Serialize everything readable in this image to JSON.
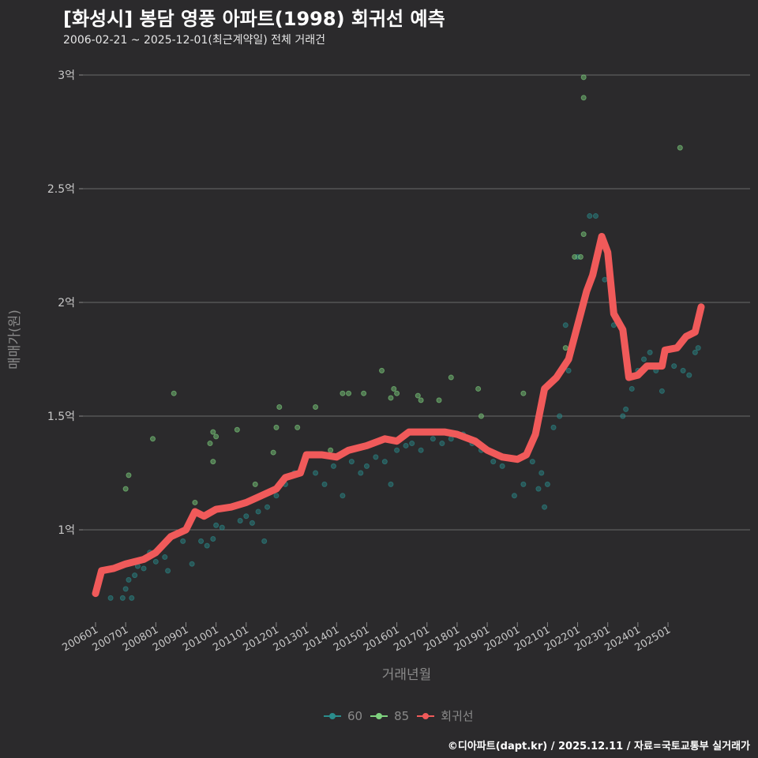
{
  "title": "[화성시] 봉담 영풍 아파트(1998) 회귀선 예측",
  "subtitle": "2006-02-21 ~ 2025-12-01(최근계약일) 전체 거래건",
  "caption": "©디아파트(dapt.kr) / 2025.12.11 / 자료=국토교통부 실거래가",
  "colors": {
    "s60": "#2a8c8c",
    "s85": "#7fd27f",
    "reg": "#f05a5a"
  },
  "chart_data": {
    "type": "scatter",
    "xlabel": "거래년월",
    "ylabel": "매매가(원)",
    "ylim": [
      0.6,
      3.0
    ],
    "xlim": [
      2005.6,
      2026.8
    ],
    "yticks": [
      {
        "v": 1,
        "label": "1억"
      },
      {
        "v": 1.5,
        "label": "1.5억"
      },
      {
        "v": 2,
        "label": "2억"
      },
      {
        "v": 2.5,
        "label": "2.5억"
      },
      {
        "v": 3,
        "label": "3억"
      }
    ],
    "xticks": [
      "200601",
      "200701",
      "200801",
      "200901",
      "201001",
      "201101",
      "201201",
      "201301",
      "201401",
      "201501",
      "201601",
      "201701",
      "201801",
      "201901",
      "202001",
      "202101",
      "202201",
      "202301",
      "202401",
      "202501"
    ],
    "legend": [
      "60",
      "85",
      "회귀선"
    ],
    "series": [
      {
        "name": "60",
        "points": [
          [
            2006.5,
            0.7
          ],
          [
            2006.9,
            0.7
          ],
          [
            2007.0,
            0.74
          ],
          [
            2007.1,
            0.78
          ],
          [
            2007.2,
            0.7
          ],
          [
            2007.3,
            0.8
          ],
          [
            2007.4,
            0.84
          ],
          [
            2007.6,
            0.83
          ],
          [
            2007.8,
            0.9
          ],
          [
            2008.0,
            0.86
          ],
          [
            2008.3,
            0.88
          ],
          [
            2008.4,
            0.82
          ],
          [
            2008.9,
            0.95
          ],
          [
            2009.2,
            0.85
          ],
          [
            2009.5,
            0.95
          ],
          [
            2009.7,
            0.93
          ],
          [
            2009.9,
            0.96
          ],
          [
            2010.0,
            1.02
          ],
          [
            2010.2,
            1.01
          ],
          [
            2010.8,
            1.04
          ],
          [
            2011.0,
            1.06
          ],
          [
            2011.2,
            1.03
          ],
          [
            2011.4,
            1.08
          ],
          [
            2011.6,
            0.95
          ],
          [
            2011.7,
            1.1
          ],
          [
            2012.0,
            1.15
          ],
          [
            2012.3,
            1.2
          ],
          [
            2012.6,
            1.25
          ],
          [
            2012.9,
            1.3
          ],
          [
            2013.3,
            1.25
          ],
          [
            2013.6,
            1.2
          ],
          [
            2013.9,
            1.28
          ],
          [
            2014.2,
            1.15
          ],
          [
            2014.5,
            1.3
          ],
          [
            2014.8,
            1.25
          ],
          [
            2015.0,
            1.28
          ],
          [
            2015.3,
            1.32
          ],
          [
            2015.6,
            1.3
          ],
          [
            2015.8,
            1.2
          ],
          [
            2016.0,
            1.35
          ],
          [
            2016.3,
            1.37
          ],
          [
            2016.5,
            1.38
          ],
          [
            2016.8,
            1.35
          ],
          [
            2017.2,
            1.4
          ],
          [
            2017.5,
            1.38
          ],
          [
            2017.8,
            1.4
          ],
          [
            2018.2,
            1.42
          ],
          [
            2018.5,
            1.38
          ],
          [
            2018.8,
            1.35
          ],
          [
            2019.2,
            1.3
          ],
          [
            2019.5,
            1.28
          ],
          [
            2019.9,
            1.15
          ],
          [
            2020.2,
            1.2
          ],
          [
            2020.5,
            1.3
          ],
          [
            2020.7,
            1.18
          ],
          [
            2020.8,
            1.25
          ],
          [
            2020.9,
            1.1
          ],
          [
            2021.0,
            1.2
          ],
          [
            2021.2,
            1.45
          ],
          [
            2021.4,
            1.5
          ],
          [
            2021.6,
            1.9
          ],
          [
            2021.7,
            1.7
          ],
          [
            2022.0,
            2.2
          ],
          [
            2022.4,
            2.38
          ],
          [
            2022.6,
            2.38
          ],
          [
            2022.9,
            2.1
          ],
          [
            2023.2,
            1.9
          ],
          [
            2023.5,
            1.5
          ],
          [
            2023.6,
            1.53
          ],
          [
            2023.8,
            1.62
          ],
          [
            2024.0,
            1.7
          ],
          [
            2024.2,
            1.75
          ],
          [
            2024.4,
            1.78
          ],
          [
            2024.6,
            1.7
          ],
          [
            2024.8,
            1.61
          ],
          [
            2025.2,
            1.72
          ],
          [
            2025.5,
            1.7
          ],
          [
            2025.7,
            1.68
          ],
          [
            2025.9,
            1.78
          ],
          [
            2026.0,
            1.8
          ]
        ]
      },
      {
        "name": "85",
        "points": [
          [
            2007.0,
            1.18
          ],
          [
            2007.1,
            1.24
          ],
          [
            2007.9,
            1.4
          ],
          [
            2008.6,
            1.6
          ],
          [
            2009.3,
            1.12
          ],
          [
            2009.8,
            1.38
          ],
          [
            2009.9,
            1.43
          ],
          [
            2010.0,
            1.41
          ],
          [
            2009.9,
            1.3
          ],
          [
            2010.7,
            1.44
          ],
          [
            2011.3,
            1.2
          ],
          [
            2011.9,
            1.34
          ],
          [
            2012.0,
            1.45
          ],
          [
            2012.1,
            1.54
          ],
          [
            2012.7,
            1.45
          ],
          [
            2013.3,
            1.54
          ],
          [
            2013.8,
            1.35
          ],
          [
            2014.2,
            1.6
          ],
          [
            2014.4,
            1.6
          ],
          [
            2014.9,
            1.6
          ],
          [
            2015.5,
            1.7
          ],
          [
            2015.8,
            1.58
          ],
          [
            2015.9,
            1.62
          ],
          [
            2016.0,
            1.6
          ],
          [
            2016.7,
            1.59
          ],
          [
            2016.8,
            1.57
          ],
          [
            2017.4,
            1.57
          ],
          [
            2017.8,
            1.67
          ],
          [
            2018.7,
            1.62
          ],
          [
            2018.8,
            1.5
          ],
          [
            2020.2,
            1.6
          ],
          [
            2021.6,
            1.8
          ],
          [
            2021.9,
            2.2
          ],
          [
            2022.1,
            2.2
          ],
          [
            2022.2,
            2.3
          ],
          [
            2022.2,
            2.9
          ],
          [
            2022.2,
            2.99
          ],
          [
            2025.4,
            2.68
          ]
        ]
      },
      {
        "name": "회귀선",
        "points": [
          [
            2006.0,
            0.72
          ],
          [
            2006.2,
            0.82
          ],
          [
            2006.6,
            0.83
          ],
          [
            2007.0,
            0.85
          ],
          [
            2007.6,
            0.87
          ],
          [
            2008.0,
            0.9
          ],
          [
            2008.5,
            0.97
          ],
          [
            2009.0,
            1.0
          ],
          [
            2009.3,
            1.08
          ],
          [
            2009.6,
            1.06
          ],
          [
            2010.0,
            1.09
          ],
          [
            2010.5,
            1.1
          ],
          [
            2011.0,
            1.12
          ],
          [
            2011.5,
            1.15
          ],
          [
            2012.0,
            1.18
          ],
          [
            2012.3,
            1.23
          ],
          [
            2012.8,
            1.25
          ],
          [
            2013.0,
            1.33
          ],
          [
            2013.5,
            1.33
          ],
          [
            2014.0,
            1.32
          ],
          [
            2014.4,
            1.35
          ],
          [
            2015.0,
            1.37
          ],
          [
            2015.6,
            1.4
          ],
          [
            2016.0,
            1.39
          ],
          [
            2016.4,
            1.43
          ],
          [
            2017.0,
            1.43
          ],
          [
            2017.6,
            1.43
          ],
          [
            2018.0,
            1.42
          ],
          [
            2018.6,
            1.39
          ],
          [
            2019.0,
            1.35
          ],
          [
            2019.5,
            1.32
          ],
          [
            2020.0,
            1.31
          ],
          [
            2020.3,
            1.33
          ],
          [
            2020.6,
            1.42
          ],
          [
            2020.9,
            1.62
          ],
          [
            2021.3,
            1.67
          ],
          [
            2021.7,
            1.75
          ],
          [
            2022.0,
            1.9
          ],
          [
            2022.3,
            2.05
          ],
          [
            2022.5,
            2.12
          ],
          [
            2022.8,
            2.29
          ],
          [
            2023.0,
            2.22
          ],
          [
            2023.2,
            1.95
          ],
          [
            2023.5,
            1.88
          ],
          [
            2023.7,
            1.67
          ],
          [
            2024.0,
            1.68
          ],
          [
            2024.3,
            1.72
          ],
          [
            2024.8,
            1.72
          ],
          [
            2024.9,
            1.79
          ],
          [
            2025.3,
            1.8
          ],
          [
            2025.6,
            1.85
          ],
          [
            2025.9,
            1.87
          ],
          [
            2026.1,
            1.98
          ]
        ]
      }
    ]
  }
}
